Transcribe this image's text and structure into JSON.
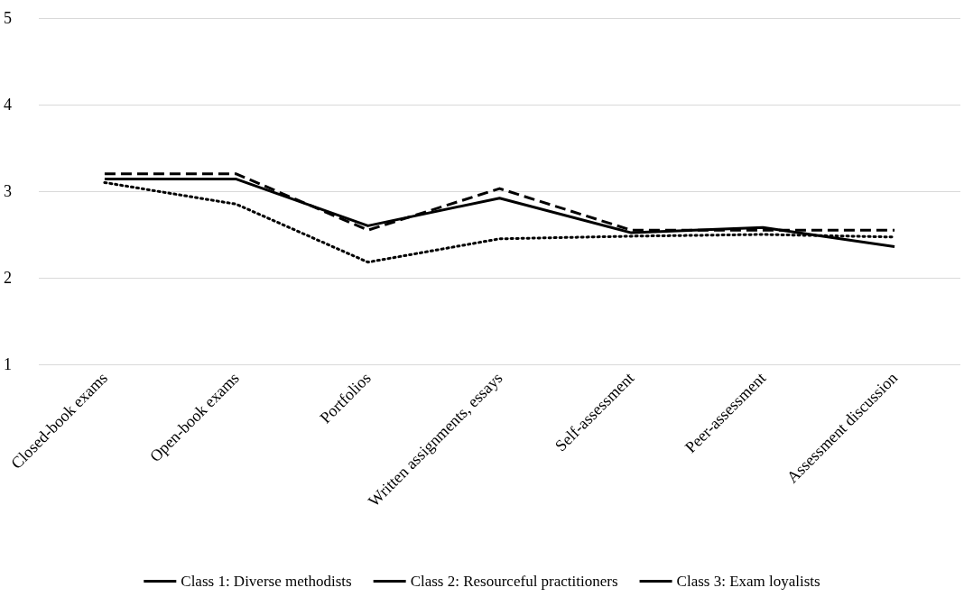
{
  "chart_data": {
    "type": "line",
    "categories": [
      "Closed-book exams",
      "Open-book exams",
      "Portfolios",
      "Written assignments, essays",
      "Self-assessment",
      "Peer-assessment",
      "Assessment discussion"
    ],
    "series": [
      {
        "name": "Class 1: Diverse methodists",
        "color": "#000000",
        "line_style": "solid",
        "values": [
          3.14,
          3.14,
          2.6,
          2.92,
          2.52,
          2.58,
          2.36
        ]
      },
      {
        "name": "Class 2: Resourceful practitioners",
        "color": "#000000",
        "line_style": "dashed",
        "values": [
          3.2,
          3.2,
          2.55,
          3.03,
          2.55,
          2.55,
          2.55
        ]
      },
      {
        "name": "Class 3: Exam loyalists",
        "color": "#000000",
        "line_style": "dotted",
        "values": [
          3.1,
          2.85,
          2.18,
          2.45,
          2.48,
          2.5,
          2.47
        ]
      }
    ],
    "ylim": [
      1,
      5
    ],
    "yticks": [
      1,
      2,
      3,
      4,
      5
    ],
    "grid": "y",
    "legend": "bottom",
    "marker": "none"
  }
}
